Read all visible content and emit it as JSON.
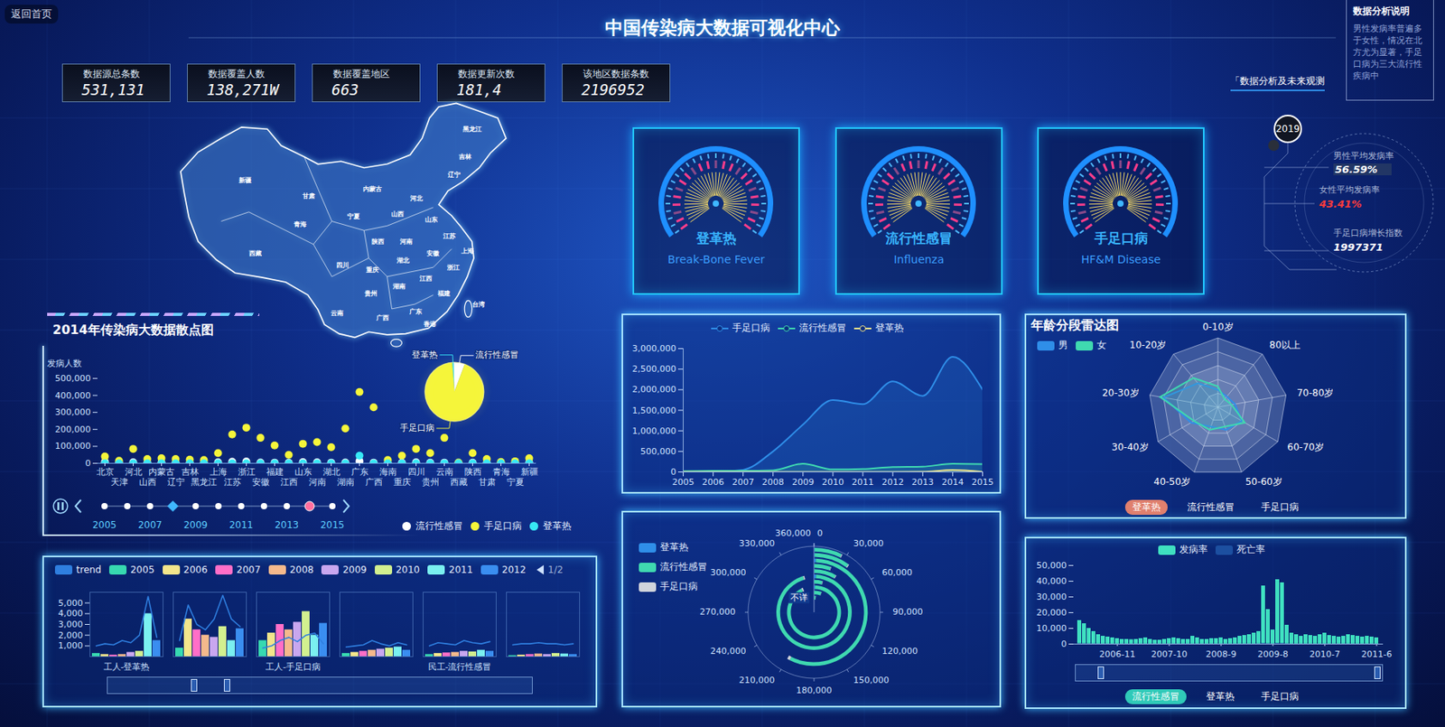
{
  "header": {
    "title": "中国传染病大数据可视化中心",
    "back_button": "返回首页"
  },
  "stats": [
    {
      "label": "数据源总条数",
      "value": "531,131"
    },
    {
      "label": "数据覆盖人数",
      "value": "138,271W"
    },
    {
      "label": "数据覆盖地区",
      "value": "663"
    },
    {
      "label": "数据更新次数",
      "value": "181,4"
    },
    {
      "label": "该地区数据条数",
      "value": "2196952"
    }
  ],
  "analysis_note": {
    "title": "数据分析说明",
    "text": "男性发病率普遍多于女性，情况在北方尤为显著，手足口病为三大流行性疾病中",
    "link": "「数据分析及未来观测"
  },
  "map": {
    "regions": [
      "新疆",
      "西藏",
      "青海",
      "甘肃",
      "内蒙古",
      "黑龙江",
      "吉林",
      "辽宁",
      "河北",
      "山西",
      "陕西",
      "宁夏",
      "河南",
      "山东",
      "江苏",
      "安徽",
      "上海",
      "湖北",
      "四川",
      "重庆",
      "贵州",
      "湖南",
      "江西",
      "浙江",
      "福建",
      "云南",
      "广西",
      "广东",
      "香港",
      "台湾"
    ]
  },
  "gauges": [
    {
      "name": "登革热",
      "subtitle": "Break-Bone Fever"
    },
    {
      "name": "流行性感冒",
      "subtitle": "Influenza"
    },
    {
      "name": "手足口病",
      "subtitle": "HF&M Disease"
    }
  ],
  "summary": {
    "year": "2019",
    "items": [
      {
        "label": "男性平均发病率",
        "value": "56.59%"
      },
      {
        "label": "女性平均发病率",
        "value": "43.41%"
      },
      {
        "label": "手足口病增长指数",
        "value": "1997371"
      }
    ]
  },
  "timeline": {
    "years": [
      2005,
      2006,
      2007,
      2008,
      2009,
      2010,
      2011,
      2012,
      2013,
      2014,
      2015
    ],
    "labels": [
      2005,
      2007,
      2009,
      2011,
      2013,
      2015
    ],
    "highlighted": 2008,
    "selected": 2014
  },
  "chart_data": [
    {
      "type": "scatter",
      "title": "2014年传染病大数据散点图",
      "ylabel": "发病人数",
      "categories": [
        "北京",
        "天津",
        "河北",
        "山西",
        "内蒙古",
        "辽宁",
        "吉林",
        "黑龙江",
        "上海",
        "江苏",
        "浙江",
        "安徽",
        "福建",
        "江西",
        "山东",
        "河南",
        "湖北",
        "湖南",
        "广东",
        "广西",
        "海南",
        "重庆",
        "四川",
        "贵州",
        "云南",
        "西藏",
        "陕西",
        "甘肃",
        "青海",
        "宁夏",
        "新疆"
      ],
      "series": [
        {
          "name": "流行性感冒",
          "color": "#ffffff",
          "values": [
            8000,
            3000,
            6000,
            4000,
            3000,
            5000,
            3000,
            4000,
            6000,
            9000,
            10000,
            5000,
            4000,
            3000,
            7000,
            6000,
            4000,
            5000,
            12000,
            4000,
            2000,
            3000,
            6000,
            3000,
            4000,
            1000,
            3000,
            2000,
            1000,
            1000,
            3000
          ]
        },
        {
          "name": "手足口病",
          "color": "#f5f53a",
          "values": [
            40000,
            15000,
            85000,
            25000,
            30000,
            25000,
            22000,
            20000,
            60000,
            170000,
            210000,
            150000,
            105000,
            50000,
            115000,
            125000,
            95000,
            205000,
            420000,
            330000,
            20000,
            45000,
            85000,
            60000,
            150000,
            5000,
            60000,
            25000,
            8000,
            12000,
            30000
          ]
        },
        {
          "name": "登革热",
          "color": "#37e8f5",
          "values": [
            0,
            0,
            0,
            0,
            0,
            0,
            0,
            0,
            0,
            0,
            100,
            0,
            300,
            0,
            0,
            0,
            0,
            0,
            45000,
            100,
            0,
            0,
            0,
            0,
            500,
            0,
            0,
            0,
            0,
            0,
            0
          ]
        }
      ],
      "ylim": [
        0,
        500000
      ],
      "yticks": [
        0,
        {
          "value": 100000,
          "label": "100,000"
        },
        {
          "value": 200000,
          "label": "200,000"
        },
        {
          "value": 300000,
          "label": "300,000"
        },
        {
          "value": 400000,
          "label": "400,000"
        },
        {
          "value": 500000,
          "label": "500,000"
        }
      ],
      "grid": false,
      "legend": "bottom"
    },
    {
      "type": "pie",
      "categories": [
        "登革热",
        "流行性感冒",
        "手足口病"
      ],
      "values": [
        1,
        6,
        93
      ],
      "colors": [
        "#37e8f5",
        "#ffffff",
        "#f5f53a"
      ]
    },
    {
      "type": "bar",
      "categories": [
        "工人-登革热",
        null,
        "工人-手足口病",
        null,
        "民工-流行性感冒",
        null
      ],
      "series": [
        {
          "name": "trend",
          "type": "line",
          "color": "#2f7fe0",
          "values": [
            [
              1000,
              1200,
              1100,
              1500,
              1300,
              2000,
              5600,
              1800
            ],
            [
              1500,
              4800,
              3000,
              2500,
              3500,
              5700,
              3500,
              2800
            ],
            [
              800,
              1000,
              1500,
              1800,
              1400,
              2000,
              2200,
              1200
            ],
            [
              900,
              1000,
              1100,
              1500,
              1200,
              1000,
              1300,
              1100
            ],
            [
              1000,
              1300,
              1200,
              1100,
              1500,
              1300,
              1200,
              1400
            ],
            [
              1100,
              1200,
              1200,
              1300,
              1200,
              1200,
              1100,
              1200
            ]
          ]
        },
        {
          "name": "2005",
          "color": "#37d9b0",
          "values": [
            300,
            800,
            1500,
            300,
            200,
            100
          ]
        },
        {
          "name": "2006",
          "color": "#f3e58b",
          "values": [
            200,
            3500,
            2200,
            400,
            300,
            150
          ]
        },
        {
          "name": "2007",
          "color": "#ff6ec7",
          "values": [
            150,
            2500,
            3000,
            500,
            350,
            200
          ]
        },
        {
          "name": "2008",
          "color": "#f5b98c",
          "values": [
            200,
            2000,
            2500,
            600,
            400,
            250
          ]
        },
        {
          "name": "2009",
          "color": "#c9a7ef",
          "values": [
            400,
            1800,
            3200,
            700,
            500,
            200
          ]
        },
        {
          "name": "2010",
          "color": "#d2f08f",
          "values": [
            500,
            2800,
            4200,
            800,
            450,
            300
          ]
        },
        {
          "name": "2011",
          "color": "#7af0f0",
          "values": [
            4000,
            1500,
            2000,
            900,
            600,
            250
          ]
        },
        {
          "name": "2012",
          "color": "#3a8ef0",
          "values": [
            1500,
            2600,
            3100,
            600,
            500,
            200
          ]
        }
      ],
      "ylim": [
        0,
        6000
      ],
      "yticks": [
        {
          "value": 1000,
          "label": "1,000"
        },
        {
          "value": 2000,
          "label": "2,000"
        },
        {
          "value": 3000,
          "label": "3,000"
        },
        {
          "value": 4000,
          "label": "4,000"
        },
        {
          "value": 5000,
          "label": "5,000"
        }
      ],
      "legend": "top",
      "pager": "1/2"
    },
    {
      "type": "line",
      "x": [
        2005,
        2006,
        2007,
        2008,
        2009,
        2010,
        2011,
        2012,
        2013,
        2014,
        2015
      ],
      "series": [
        {
          "name": "手足口病",
          "color": "#2f8ee8",
          "values": [
            2000,
            3000,
            50000,
            500000,
            1150000,
            1750000,
            1650000,
            2200000,
            1850000,
            2800000,
            2000000
          ]
        },
        {
          "name": "流行性感冒",
          "color": "#3fd9b0",
          "values": [
            20000,
            30000,
            30000,
            40000,
            200000,
            60000,
            70000,
            120000,
            130000,
            200000,
            190000
          ]
        },
        {
          "name": "登革热",
          "color": "#f3e58b",
          "values": [
            50,
            1000,
            500,
            200,
            300,
            200,
            100,
            600,
            4700,
            47000,
            3800
          ]
        }
      ],
      "xlim": [
        2005,
        2015
      ],
      "xticks": [
        2005,
        2006,
        2007,
        2008,
        2009,
        2010,
        2011,
        2012,
        2013,
        2014,
        2015
      ],
      "ylim": [
        0,
        3000000
      ],
      "yticks": [
        0,
        {
          "value": 500000,
          "label": "500,000"
        },
        {
          "value": 1000000,
          "label": "1,000,000"
        },
        {
          "value": 1500000,
          "label": "1,500,000"
        },
        {
          "value": 2000000,
          "label": "2,000,000"
        },
        {
          "value": 2500000,
          "label": "2,500,000"
        },
        {
          "value": 3000000,
          "label": "3,000,000"
        }
      ],
      "grid": false,
      "legend": "top"
    },
    {
      "type": "polar_bar",
      "categories": [
        "不详",
        null,
        null,
        null,
        null,
        null,
        null,
        null,
        null,
        null
      ],
      "series": [
        {
          "name": "登革热",
          "color": "#2f8ee8",
          "values": [
            500,
            300,
            2000,
            200,
            3000,
            400,
            300,
            2000,
            500,
            400
          ]
        },
        {
          "name": "流行性感冒",
          "color": "#3fd9b0",
          "values": [
            5000,
            20000,
            330000,
            15000,
            340000,
            30000,
            20000,
            205000,
            35000,
            25000
          ]
        },
        {
          "name": "手足口病",
          "color": "#d0d4dc",
          "values": [
            1000,
            500,
            3000,
            800,
            2000,
            1000,
            700,
            3000,
            1000,
            800
          ]
        }
      ],
      "xlim": [
        0,
        360000
      ],
      "xticks": [
        0,
        {
          "value": 30000,
          "label": "30,000"
        },
        {
          "value": 60000,
          "label": "60,000"
        },
        {
          "value": 90000,
          "label": "90,000"
        },
        {
          "value": 120000,
          "label": "120,000"
        },
        {
          "value": 150000,
          "label": "150,000"
        },
        {
          "value": 180000,
          "label": "180,000"
        },
        {
          "value": 210000,
          "label": "210,000"
        },
        {
          "value": 240000,
          "label": "240,000"
        },
        {
          "value": 270000,
          "label": "270,000"
        },
        {
          "value": 300000,
          "label": "300,000"
        },
        {
          "value": 330000,
          "label": "330,000"
        },
        {
          "value": 360000,
          "label": "360,000"
        }
      ],
      "stacked": true,
      "legend": "left"
    },
    {
      "type": "radar",
      "title": "年龄分段雷达图",
      "categories": [
        "0-10岁",
        "80以上",
        "70-80岁",
        "60-70岁",
        "50-60岁",
        "40-50岁",
        "30-40岁",
        "20-30岁",
        "10-20岁"
      ],
      "series": [
        {
          "name": "男",
          "color": "#2f8ee8",
          "values": [
            25,
            20,
            25,
            40,
            35,
            30,
            45,
            80,
            45
          ]
        },
        {
          "name": "女",
          "color": "#3fd9b0",
          "values": [
            30,
            15,
            20,
            45,
            30,
            35,
            40,
            85,
            55
          ]
        }
      ],
      "ylim": [
        0,
        100
      ],
      "yticks": [
        0,
        20,
        40,
        60,
        80,
        100
      ],
      "tick_labels": false,
      "legend": "top-left",
      "filters": [
        "登革热",
        "流行性感冒",
        "手足口病"
      ],
      "selected_filter": "登革热"
    },
    {
      "type": "bar",
      "categories": [
        null,
        null,
        null,
        null,
        null,
        null,
        null,
        null,
        "2006-11",
        null,
        null,
        null,
        null,
        null,
        null,
        null,
        null,
        null,
        null,
        "2007-10",
        null,
        null,
        null,
        null,
        null,
        null,
        null,
        null,
        null,
        null,
        "2008-9",
        null,
        null,
        null,
        null,
        null,
        null,
        null,
        null,
        null,
        null,
        "2009-8",
        null,
        null,
        null,
        null,
        null,
        null,
        null,
        null,
        null,
        null,
        "2010-7",
        null,
        null,
        null,
        null,
        null,
        null,
        null,
        null,
        null,
        null,
        "2011-6"
      ],
      "series": [
        {
          "name": "发病率",
          "color": "#3fe0c0",
          "values": [
            15000,
            13000,
            10000,
            8000,
            6000,
            5000,
            4500,
            4000,
            3500,
            3000,
            3000,
            2800,
            3000,
            3500,
            4000,
            3000,
            2500,
            2500,
            3000,
            3500,
            4000,
            3500,
            3000,
            3000,
            5000,
            4000,
            3000,
            3000,
            3500,
            3500,
            4000,
            3000,
            3500,
            4000,
            5000,
            5500,
            6000,
            7000,
            8000,
            37000,
            22000,
            9000,
            41000,
            39000,
            12000,
            7000,
            6000,
            5000,
            6000,
            5500,
            5000,
            6000,
            7000,
            5500,
            5000,
            4500,
            5000,
            6000,
            5500,
            5000,
            4500,
            5000,
            4500,
            4000
          ]
        },
        {
          "name": "死亡率",
          "color": "#1c4fa0",
          "values": [
            300,
            250,
            200,
            150,
            120,
            100,
            100,
            100,
            100,
            100,
            100,
            100,
            100,
            100,
            100,
            100,
            100,
            100,
            100,
            100,
            100,
            100,
            100,
            100,
            100,
            100,
            100,
            100,
            100,
            100,
            100,
            100,
            100,
            100,
            100,
            100,
            100,
            100,
            150,
            400,
            250,
            150,
            450,
            400,
            200,
            100,
            100,
            100,
            100,
            100,
            100,
            100,
            100,
            100,
            100,
            100,
            100,
            100,
            100,
            100,
            100,
            100,
            100,
            100
          ]
        }
      ],
      "ylim": [
        0,
        50000
      ],
      "yticks": [
        0,
        {
          "value": 10000,
          "label": "10,000"
        },
        {
          "value": 20000,
          "label": "20,000"
        },
        {
          "value": 30000,
          "label": "30,000"
        },
        {
          "value": 40000,
          "label": "40,000"
        },
        {
          "value": 50000,
          "label": "50,000"
        }
      ],
      "stacked": false,
      "legend": "top",
      "filters": [
        "流行性感冒",
        "登革热",
        "手足口病"
      ],
      "selected_filter": "流行性感冒"
    }
  ]
}
